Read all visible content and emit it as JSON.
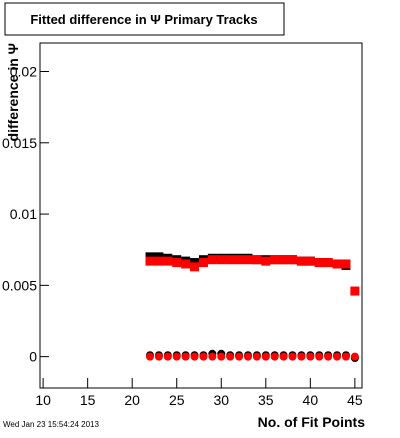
{
  "chart_data": {
    "type": "scatter",
    "title": "Fitted difference in Ψ  Primary Tracks",
    "x_label": "No. of Fit Points",
    "y_label": "difference in Ψ",
    "timestamp": "Wed Jan 23 15:54:24 2013",
    "xlim": [
      9.65,
      45.8
    ],
    "ylim": [
      -0.0022,
      0.022
    ],
    "xticks": [
      10,
      15,
      20,
      25,
      30,
      35,
      40,
      45
    ],
    "yticks": [
      0,
      0.005,
      0.01,
      0.015,
      0.02
    ],
    "series": [
      {
        "color": "#000000",
        "marker": "square",
        "x": [
          22,
          23,
          24,
          25,
          26,
          27,
          28,
          29,
          30,
          31,
          32,
          33,
          34,
          35,
          36,
          37,
          38,
          39,
          40,
          41,
          42,
          43,
          44
        ],
        "values": [
          0.007,
          0.007,
          0.0069,
          0.0068,
          0.0067,
          0.0066,
          0.0068,
          0.0069,
          0.0069,
          0.0069,
          0.0069,
          0.0069,
          0.0068,
          0.0068,
          0.0068,
          0.0068,
          0.0068,
          0.0067,
          0.0067,
          0.0066,
          0.0066,
          0.0065,
          0.0064
        ]
      },
      {
        "color": "#000000",
        "marker": "circle",
        "x": [
          22,
          23,
          24,
          25,
          26,
          27,
          28,
          29,
          30,
          31,
          32,
          33,
          34,
          35,
          36,
          37,
          38,
          39,
          40,
          41,
          42,
          43,
          44,
          45
        ],
        "values": [
          0.0001,
          0.0001,
          0.0001,
          0.0001,
          0.0001,
          0.0001,
          0.0001,
          0.0002,
          0.0002,
          0.0001,
          0.0001,
          0.0001,
          0.0001,
          0.0001,
          0.0001,
          0.0001,
          0.0001,
          0.0001,
          0.0001,
          0.0001,
          0.0001,
          0.0001,
          0.0001,
          -0.0001
        ]
      },
      {
        "color": "#ff0000",
        "marker": "square",
        "x": [
          22,
          23,
          24,
          25,
          26,
          27,
          28,
          29,
          30,
          31,
          32,
          33,
          34,
          35,
          36,
          37,
          38,
          39,
          40,
          41,
          42,
          43,
          44,
          45
        ],
        "values": [
          0.0067,
          0.0067,
          0.0067,
          0.0066,
          0.0065,
          0.0063,
          0.0066,
          0.0068,
          0.0068,
          0.0068,
          0.0068,
          0.0068,
          0.0068,
          0.0067,
          0.0068,
          0.0068,
          0.0068,
          0.0067,
          0.0067,
          0.0066,
          0.0066,
          0.0065,
          0.0065,
          0.0046
        ]
      },
      {
        "color": "#ff0000",
        "marker": "circle",
        "x": [
          22,
          23,
          24,
          25,
          26,
          27,
          28,
          29,
          30,
          31,
          32,
          33,
          34,
          35,
          36,
          37,
          38,
          39,
          40,
          41,
          42,
          43,
          44,
          45
        ],
        "values": [
          0,
          0,
          0,
          0,
          0,
          0,
          0,
          0,
          0,
          0,
          0,
          0,
          0,
          0,
          0,
          0,
          0,
          0,
          0,
          0,
          0,
          0,
          0,
          0
        ]
      }
    ]
  }
}
